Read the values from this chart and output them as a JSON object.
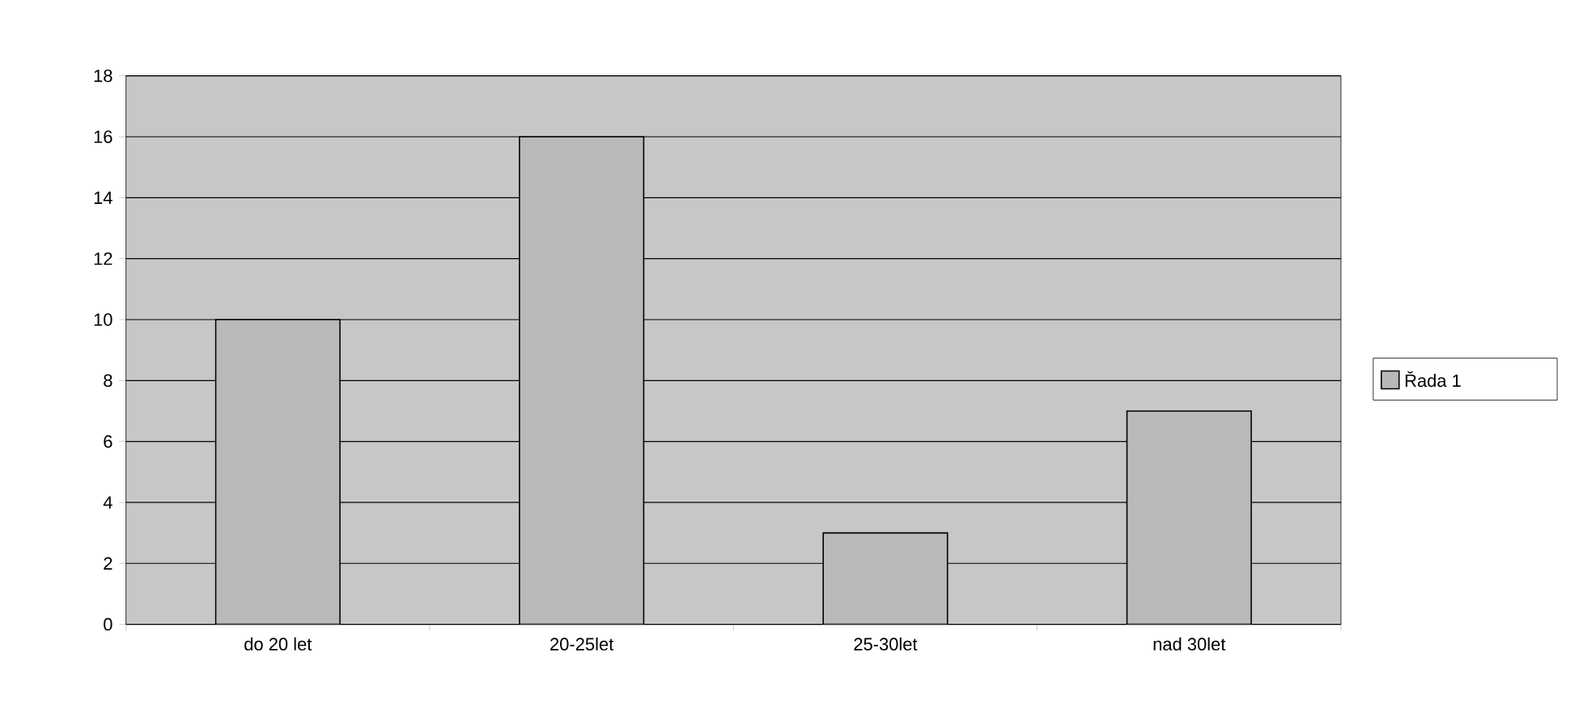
{
  "chart_data": {
    "type": "bar",
    "categories": [
      "do 20 let",
      "20-25let",
      "25-30let",
      "nad 30let"
    ],
    "series": [
      {
        "name": "Řada 1",
        "color": "#b9b9b9",
        "values": [
          10,
          16,
          3,
          7
        ]
      }
    ],
    "ylim": [
      0,
      18
    ],
    "yticks": [
      0,
      2,
      4,
      6,
      8,
      10,
      12,
      14,
      16,
      18
    ],
    "grid": "y",
    "legend": "right"
  }
}
